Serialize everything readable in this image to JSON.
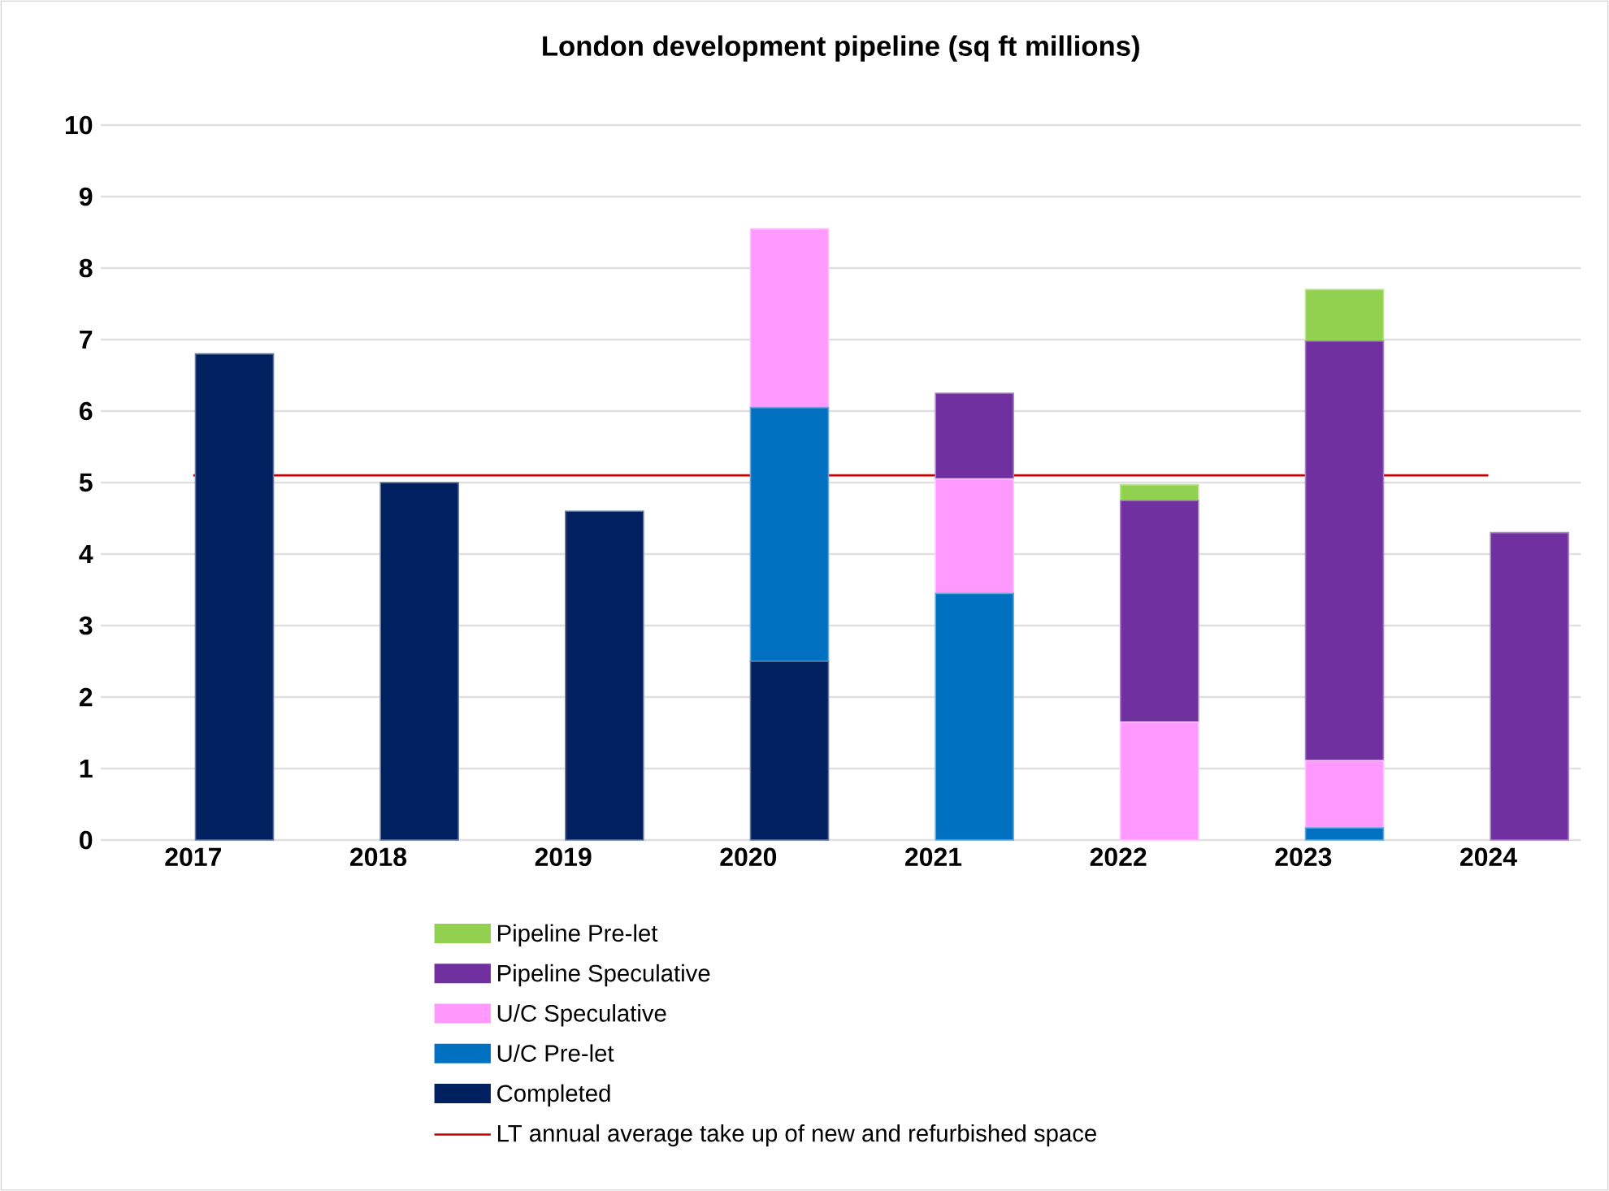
{
  "chart_data": {
    "type": "bar",
    "title": "London development pipeline (sq ft millions)",
    "stacked": true,
    "categories": [
      "2017",
      "2018",
      "2019",
      "2020",
      "2021",
      "2022",
      "2023",
      "2024"
    ],
    "series": [
      {
        "name": "Completed",
        "color": "#002060",
        "values": [
          6.8,
          5.0,
          4.6,
          2.5,
          null,
          null,
          null,
          null
        ]
      },
      {
        "name": "U/C Pre-let",
        "color": "#0070c0",
        "values": [
          null,
          null,
          null,
          3.55,
          3.45,
          null,
          0.17,
          null
        ]
      },
      {
        "name": "U/C Speculative",
        "color": "#ff99ff",
        "values": [
          null,
          null,
          null,
          2.5,
          1.6,
          1.65,
          0.94,
          null
        ]
      },
      {
        "name": "Pipeline Speculative",
        "color": "#7030a0",
        "values": [
          null,
          null,
          null,
          null,
          1.2,
          3.1,
          5.87,
          4.3
        ]
      },
      {
        "name": "Pipeline Pre-let",
        "color": "#92d050",
        "values": [
          null,
          null,
          null,
          null,
          null,
          0.22,
          0.72,
          null
        ]
      }
    ],
    "ylim": [
      0,
      10
    ],
    "yticks": [
      0,
      1,
      2,
      3,
      4,
      5,
      6,
      7,
      8,
      9,
      10
    ],
    "grid": "y",
    "legend": "bottom",
    "ref_lines": [
      {
        "axis": "y",
        "value": 5.1,
        "label": "LT annual average take up of new and refurbished space",
        "color": "#c00000"
      }
    ]
  }
}
